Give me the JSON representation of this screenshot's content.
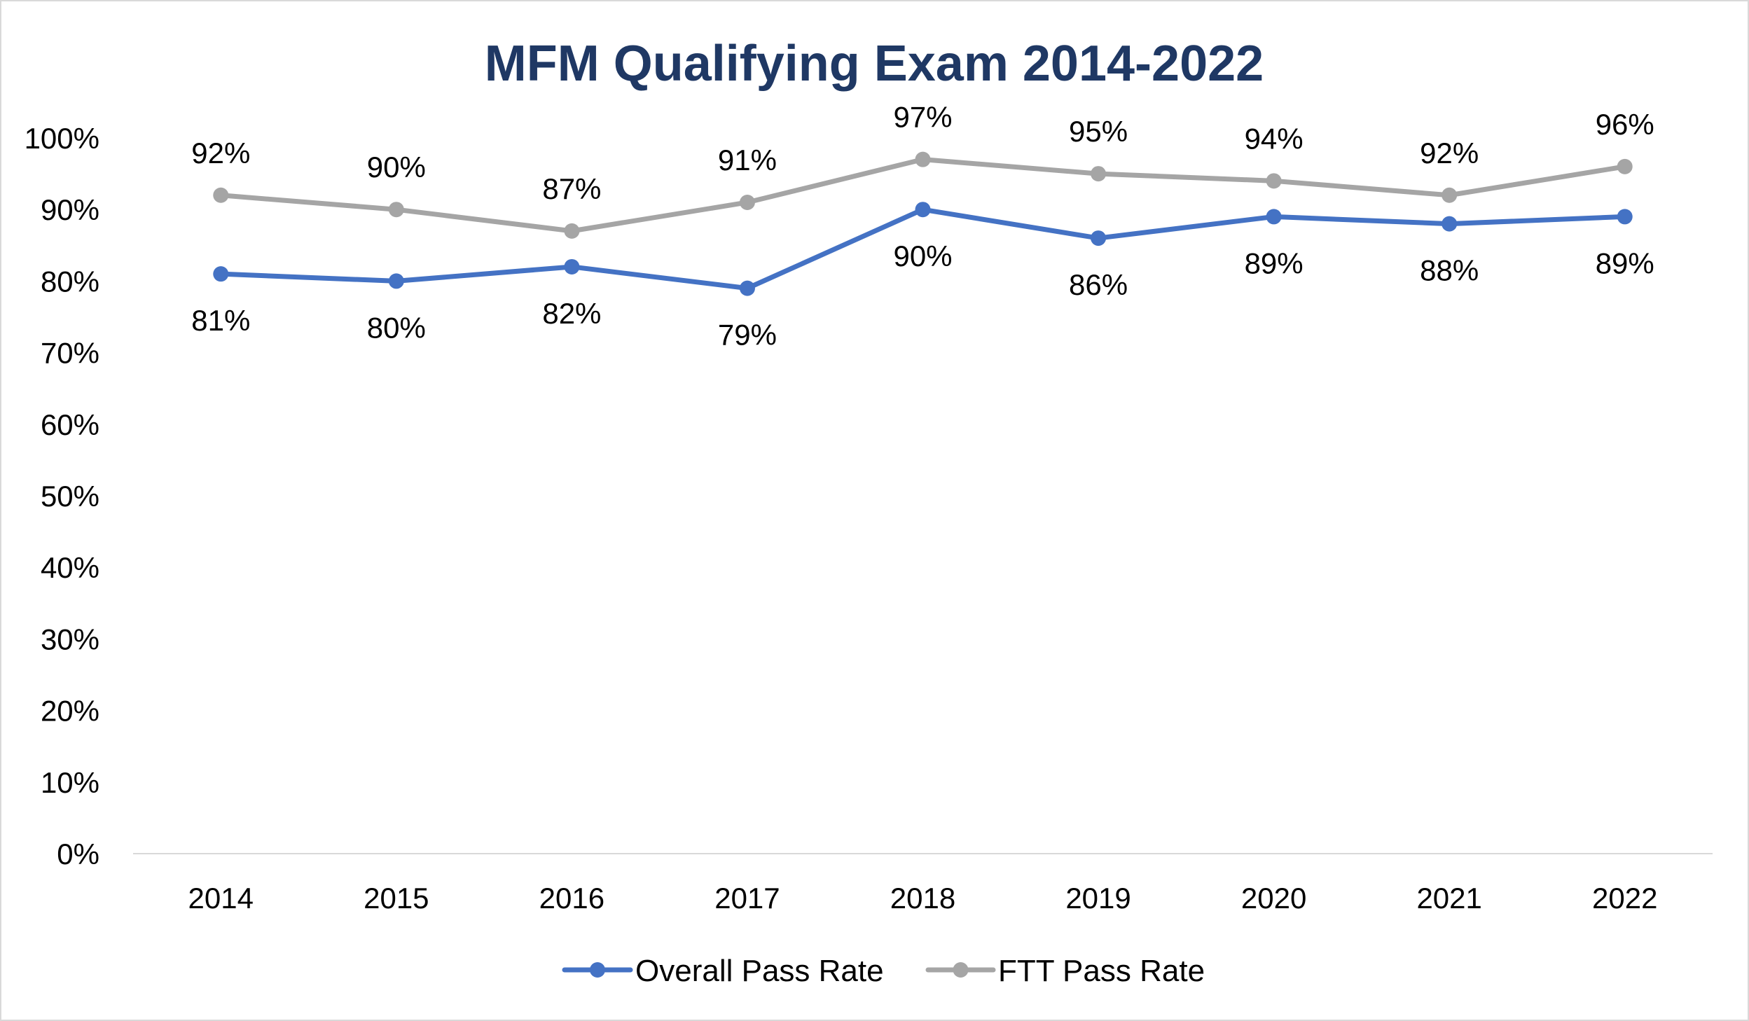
{
  "chart_data": {
    "type": "line",
    "title": "MFM Qualifying Exam 2014-2022",
    "xlabel": "",
    "ylabel": "",
    "categories": [
      "2014",
      "2015",
      "2016",
      "2017",
      "2018",
      "2019",
      "2020",
      "2021",
      "2022"
    ],
    "ylim": [
      0,
      100
    ],
    "yticks": [
      "0%",
      "10%",
      "20%",
      "30%",
      "40%",
      "50%",
      "60%",
      "70%",
      "80%",
      "90%",
      "100%"
    ],
    "grid": false,
    "legend_position": "bottom",
    "title_color": "#1f3864",
    "series": [
      {
        "name": "Overall Pass Rate",
        "color": "#4472c4",
        "values": [
          81,
          80,
          82,
          79,
          90,
          86,
          89,
          88,
          89
        ],
        "labels": [
          "81%",
          "80%",
          "82%",
          "79%",
          "90%",
          "86%",
          "89%",
          "88%",
          "89%"
        ],
        "label_position": "below"
      },
      {
        "name": "FTT Pass Rate",
        "color": "#a5a5a5",
        "values": [
          92,
          90,
          87,
          91,
          97,
          95,
          94,
          92,
          96
        ],
        "labels": [
          "92%",
          "90%",
          "87%",
          "91%",
          "97%",
          "95%",
          "94%",
          "92%",
          "96%"
        ],
        "label_position": "above"
      }
    ]
  }
}
